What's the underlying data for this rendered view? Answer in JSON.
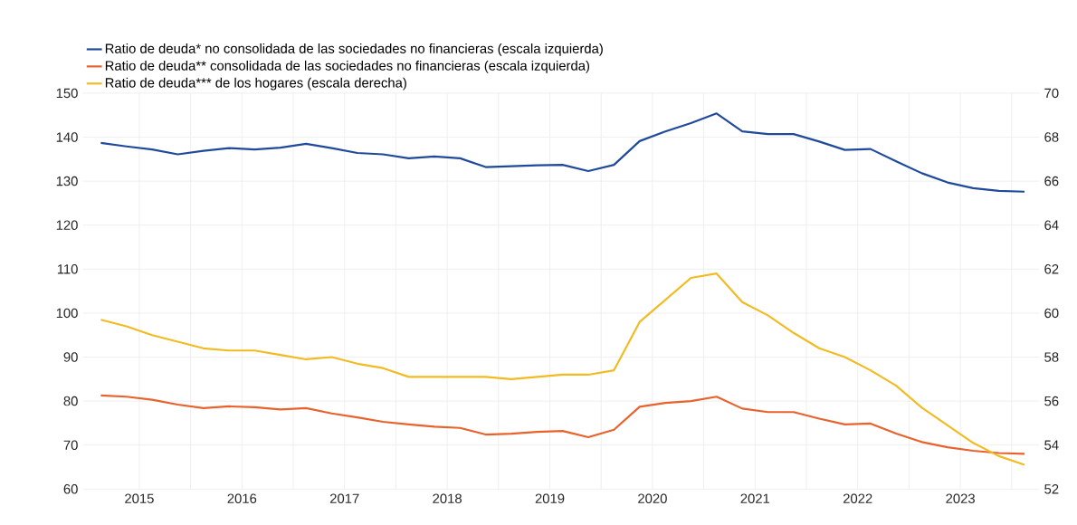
{
  "chart_data": {
    "type": "line",
    "x": [
      2015.125,
      2015.375,
      2015.625,
      2015.875,
      2016.125,
      2016.375,
      2016.625,
      2016.875,
      2017.125,
      2017.375,
      2017.625,
      2017.875,
      2018.125,
      2018.375,
      2018.625,
      2018.875,
      2019.125,
      2019.375,
      2019.625,
      2019.875,
      2020.125,
      2020.375,
      2020.625,
      2020.875,
      2021.125,
      2021.375,
      2021.625,
      2021.875,
      2022.125,
      2022.375,
      2022.625,
      2022.875,
      2023.125,
      2023.375,
      2023.625,
      2023.875,
      2024.125
    ],
    "series": [
      {
        "name": "Ratio de deuda* no consolidada de las sociedades no financieras (escala izquierda)",
        "color": "#1f4a9b",
        "values": [
          138.7,
          137.9,
          137.2,
          136.1,
          136.9,
          137.5,
          137.2,
          137.6,
          138.5,
          137.5,
          136.4,
          136.1,
          135.2,
          135.6,
          135.2,
          133.2,
          133.4,
          133.6,
          133.7,
          132.3,
          133.7,
          139.1,
          141.3,
          143.2,
          145.4,
          141.3,
          140.7,
          140.7,
          139.0,
          137.1,
          137.3,
          134.5,
          131.8,
          129.7,
          128.4,
          127.8,
          127.6
        ]
      },
      {
        "name": "Ratio de deuda** consolidada de las sociedades no financieras (escala izquierda)",
        "color": "#e8622c",
        "values": [
          81.3,
          81.0,
          80.3,
          79.2,
          78.4,
          78.8,
          78.6,
          78.1,
          78.4,
          77.2,
          76.3,
          75.3,
          74.7,
          74.2,
          73.9,
          72.4,
          72.6,
          73.0,
          73.2,
          71.8,
          73.5,
          78.7,
          79.6,
          80.0,
          81.0,
          78.3,
          77.5,
          77.5,
          76.0,
          74.7,
          74.9,
          72.6,
          70.7,
          69.5,
          68.7,
          68.2,
          68.0
        ]
      },
      {
        "name": "Ratio de deuda*** de los hogares (escala derecha)",
        "color": "#f2bb22",
        "axis": "y2",
        "values": [
          59.7,
          59.4,
          59.0,
          58.7,
          58.4,
          58.3,
          58.3,
          58.1,
          57.9,
          58.0,
          57.7,
          57.5,
          57.1,
          57.1,
          57.1,
          57.1,
          57.0,
          57.1,
          57.2,
          57.2,
          57.4,
          59.6,
          60.6,
          61.6,
          61.8,
          60.5,
          59.9,
          59.1,
          58.4,
          58.0,
          57.4,
          56.7,
          55.7,
          54.9,
          54.1,
          53.5,
          53.1
        ]
      }
    ],
    "xlim": [
      2014.95,
      2024.27
    ],
    "xticks": [
      {
        "value": 2015.5,
        "label": "2015"
      },
      {
        "value": 2016.5,
        "label": "2016"
      },
      {
        "value": 2017.5,
        "label": "2017"
      },
      {
        "value": 2018.5,
        "label": "2018"
      },
      {
        "value": 2019.5,
        "label": "2019"
      },
      {
        "value": 2020.5,
        "label": "2020"
      },
      {
        "value": 2021.5,
        "label": "2021"
      },
      {
        "value": 2022.5,
        "label": "2022"
      },
      {
        "value": 2023.5,
        "label": "2023"
      },
      {
        "value": 2016,
        "label": null
      },
      {
        "value": 2017,
        "label": null
      },
      {
        "value": 2018,
        "label": null
      },
      {
        "value": 2019,
        "label": null
      },
      {
        "value": 2020,
        "label": null
      },
      {
        "value": 2021,
        "label": null
      },
      {
        "value": 2022,
        "label": null
      },
      {
        "value": 2023,
        "label": null
      },
      {
        "value": 2024,
        "label": null
      }
    ],
    "ylim": [
      60,
      150
    ],
    "yticks": [
      60,
      70,
      80,
      90,
      100,
      110,
      120,
      130,
      140,
      150
    ],
    "y2lim": [
      52,
      70
    ],
    "y2ticks": [
      52,
      54,
      56,
      58,
      60,
      62,
      64,
      66,
      68,
      70
    ],
    "grid": true,
    "legend": "top left",
    "marker": "none",
    "line_style": "solid"
  }
}
